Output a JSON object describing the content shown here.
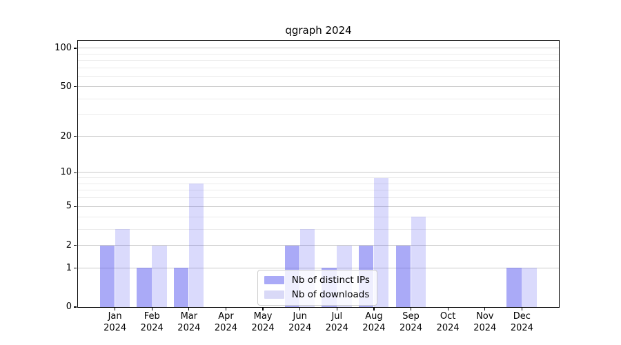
{
  "chart_data": {
    "type": "bar",
    "title": "qgraph 2024",
    "x_categories": [
      "Jan",
      "Feb",
      "Mar",
      "Apr",
      "May",
      "Jun",
      "Jul",
      "Aug",
      "Sep",
      "Oct",
      "Nov",
      "Dec"
    ],
    "x_sub_label": "2024",
    "series": [
      {
        "name": "Nb of distinct IPs",
        "values": [
          2,
          1,
          1,
          0,
          0,
          2,
          1,
          2,
          2,
          0,
          0,
          1
        ],
        "fill": "rgba(85,85,240,0.5)",
        "swatch": "#aaaaf7"
      },
      {
        "name": "Nb of downloads",
        "values": [
          3,
          2,
          8,
          0,
          0,
          3,
          2,
          9,
          4,
          0,
          0,
          1
        ],
        "fill": "rgba(85,85,240,0.22)",
        "swatch": "#d9d9f7"
      }
    ],
    "y_axis": {
      "scale": "log1p",
      "major_ticks": [
        0,
        1,
        2,
        5,
        10,
        20,
        50,
        100
      ],
      "minor_ticks": [
        3,
        4,
        6,
        7,
        8,
        9,
        30,
        40,
        60,
        70,
        80,
        90
      ],
      "max_tick": 100,
      "ylim": [
        0,
        115
      ]
    },
    "grid": {
      "orientation": "horizontal",
      "major_color": "#c9c9c9",
      "minor_color": "#ebebeb"
    },
    "legend": {
      "position": "bottom-center"
    }
  },
  "colors": {
    "axis": "#000000",
    "background": "#ffffff"
  }
}
